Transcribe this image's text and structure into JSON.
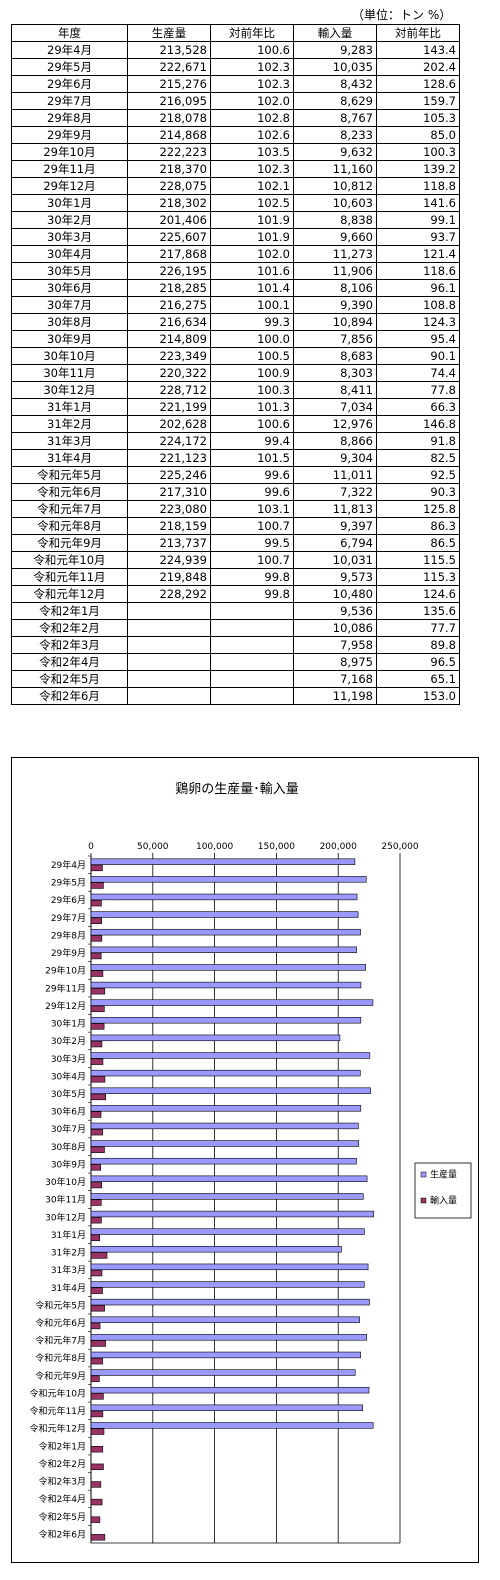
{
  "unit_note": "（単位：トン %）",
  "table": {
    "headers": [
      "年度",
      "生産量",
      "対前年比",
      "輸入量",
      "対前年比"
    ],
    "rows": [
      [
        "29年4月",
        "213,528",
        "100.6",
        "9,283",
        "143.4"
      ],
      [
        "29年5月",
        "222,671",
        "102.3",
        "10,035",
        "202.4"
      ],
      [
        "29年6月",
        "215,276",
        "102.3",
        "8,432",
        "128.6"
      ],
      [
        "29年7月",
        "216,095",
        "102.0",
        "8,629",
        "159.7"
      ],
      [
        "29年8月",
        "218,078",
        "102.8",
        "8,767",
        "105.3"
      ],
      [
        "29年9月",
        "214,868",
        "102.6",
        "8,233",
        "85.0"
      ],
      [
        "29年10月",
        "222,223",
        "103.5",
        "9,632",
        "100.3"
      ],
      [
        "29年11月",
        "218,370",
        "102.3",
        "11,160",
        "139.2"
      ],
      [
        "29年12月",
        "228,075",
        "102.1",
        "10,812",
        "118.8"
      ],
      [
        "30年1月",
        "218,302",
        "102.5",
        "10,603",
        "141.6"
      ],
      [
        "30年2月",
        "201,406",
        "101.9",
        "8,838",
        "99.1"
      ],
      [
        "30年3月",
        "225,607",
        "101.9",
        "9,660",
        "93.7"
      ],
      [
        "30年4月",
        "217,868",
        "102.0",
        "11,273",
        "121.4"
      ],
      [
        "30年5月",
        "226,195",
        "101.6",
        "11,906",
        "118.6"
      ],
      [
        "30年6月",
        "218,285",
        "101.4",
        "8,106",
        "96.1"
      ],
      [
        "30年7月",
        "216,275",
        "100.1",
        "9,390",
        "108.8"
      ],
      [
        "30年8月",
        "216,634",
        "99.3",
        "10,894",
        "124.3"
      ],
      [
        "30年9月",
        "214,809",
        "100.0",
        "7,856",
        "95.4"
      ],
      [
        "30年10月",
        "223,349",
        "100.5",
        "8,683",
        "90.1"
      ],
      [
        "30年11月",
        "220,322",
        "100.9",
        "8,303",
        "74.4"
      ],
      [
        "30年12月",
        "228,712",
        "100.3",
        "8,411",
        "77.8"
      ],
      [
        "31年1月",
        "221,199",
        "101.3",
        "7,034",
        "66.3"
      ],
      [
        "31年2月",
        "202,628",
        "100.6",
        "12,976",
        "146.8"
      ],
      [
        "31年3月",
        "224,172",
        "99.4",
        "8,866",
        "91.8"
      ],
      [
        "31年4月",
        "221,123",
        "101.5",
        "9,304",
        "82.5"
      ],
      [
        "令和元年5月",
        "225,246",
        "99.6",
        "11,011",
        "92.5"
      ],
      [
        "令和元年6月",
        "217,310",
        "99.6",
        "7,322",
        "90.3"
      ],
      [
        "令和元年7月",
        "223,080",
        "103.1",
        "11,813",
        "125.8"
      ],
      [
        "令和元年8月",
        "218,159",
        "100.7",
        "9,397",
        "86.3"
      ],
      [
        "令和元年9月",
        "213,737",
        "99.5",
        "6,794",
        "86.5"
      ],
      [
        "令和元年10月",
        "224,939",
        "100.7",
        "10,031",
        "115.5"
      ],
      [
        "令和元年11月",
        "219,848",
        "99.8",
        "9,573",
        "115.3"
      ],
      [
        "令和元年12月",
        "228,292",
        "99.8",
        "10,480",
        "124.6"
      ],
      [
        "令和2年1月",
        "",
        "",
        "9,536",
        "135.6"
      ],
      [
        "令和2年2月",
        "",
        "",
        "10,086",
        "77.7"
      ],
      [
        "令和2年3月",
        "",
        "",
        "7,958",
        "89.8"
      ],
      [
        "令和2年4月",
        "",
        "",
        "8,975",
        "96.5"
      ],
      [
        "令和2年5月",
        "",
        "",
        "7,168",
        "65.1"
      ],
      [
        "令和2年6月",
        "",
        "",
        "11,198",
        "153.0"
      ]
    ]
  },
  "chart_data": {
    "type": "bar",
    "orientation": "horizontal",
    "title": "鶏卵の生産量･輸入量",
    "xlim": [
      0,
      250000
    ],
    "x_ticks": [
      "0",
      "50,000",
      "100,000",
      "150,000",
      "200,000",
      "250,000"
    ],
    "x_tick_values": [
      0,
      50000,
      100000,
      150000,
      200000,
      250000
    ],
    "grid": true,
    "legend_position": "right",
    "categories": [
      "29年4月",
      "29年5月",
      "29年6月",
      "29年7月",
      "29年8月",
      "29年9月",
      "29年10月",
      "29年11月",
      "29年12月",
      "30年1月",
      "30年2月",
      "30年3月",
      "30年4月",
      "30年5月",
      "30年6月",
      "30年7月",
      "30年8月",
      "30年9月",
      "30年10月",
      "30年11月",
      "30年12月",
      "31年1月",
      "31年2月",
      "31年3月",
      "31年4月",
      "令和元年5月",
      "令和元年6月",
      "令和元年7月",
      "令和元年8月",
      "令和元年9月",
      "令和元年10月",
      "令和元年11月",
      "令和元年12月",
      "令和2年1月",
      "令和2年2月",
      "令和2年3月",
      "令和2年4月",
      "令和2年5月",
      "令和2年6月"
    ],
    "series": [
      {
        "name": "生産量",
        "color": "#9999ff",
        "values": [
          213528,
          222671,
          215276,
          216095,
          218078,
          214868,
          222223,
          218370,
          228075,
          218302,
          201406,
          225607,
          217868,
          226195,
          218285,
          216275,
          216634,
          214809,
          223349,
          220322,
          228712,
          221199,
          202628,
          224172,
          221123,
          225246,
          217310,
          223080,
          218159,
          213737,
          224939,
          219848,
          228292,
          null,
          null,
          null,
          null,
          null,
          null
        ]
      },
      {
        "name": "輸入量",
        "color": "#993366",
        "values": [
          9283,
          10035,
          8432,
          8629,
          8767,
          8233,
          9632,
          11160,
          10812,
          10603,
          8838,
          9660,
          11273,
          11906,
          8106,
          9390,
          10894,
          7856,
          8683,
          8303,
          8411,
          7034,
          12976,
          8866,
          9304,
          11011,
          7322,
          11813,
          9397,
          6794,
          10031,
          9573,
          10480,
          9536,
          10086,
          7958,
          8975,
          7168,
          11198
        ]
      }
    ]
  }
}
